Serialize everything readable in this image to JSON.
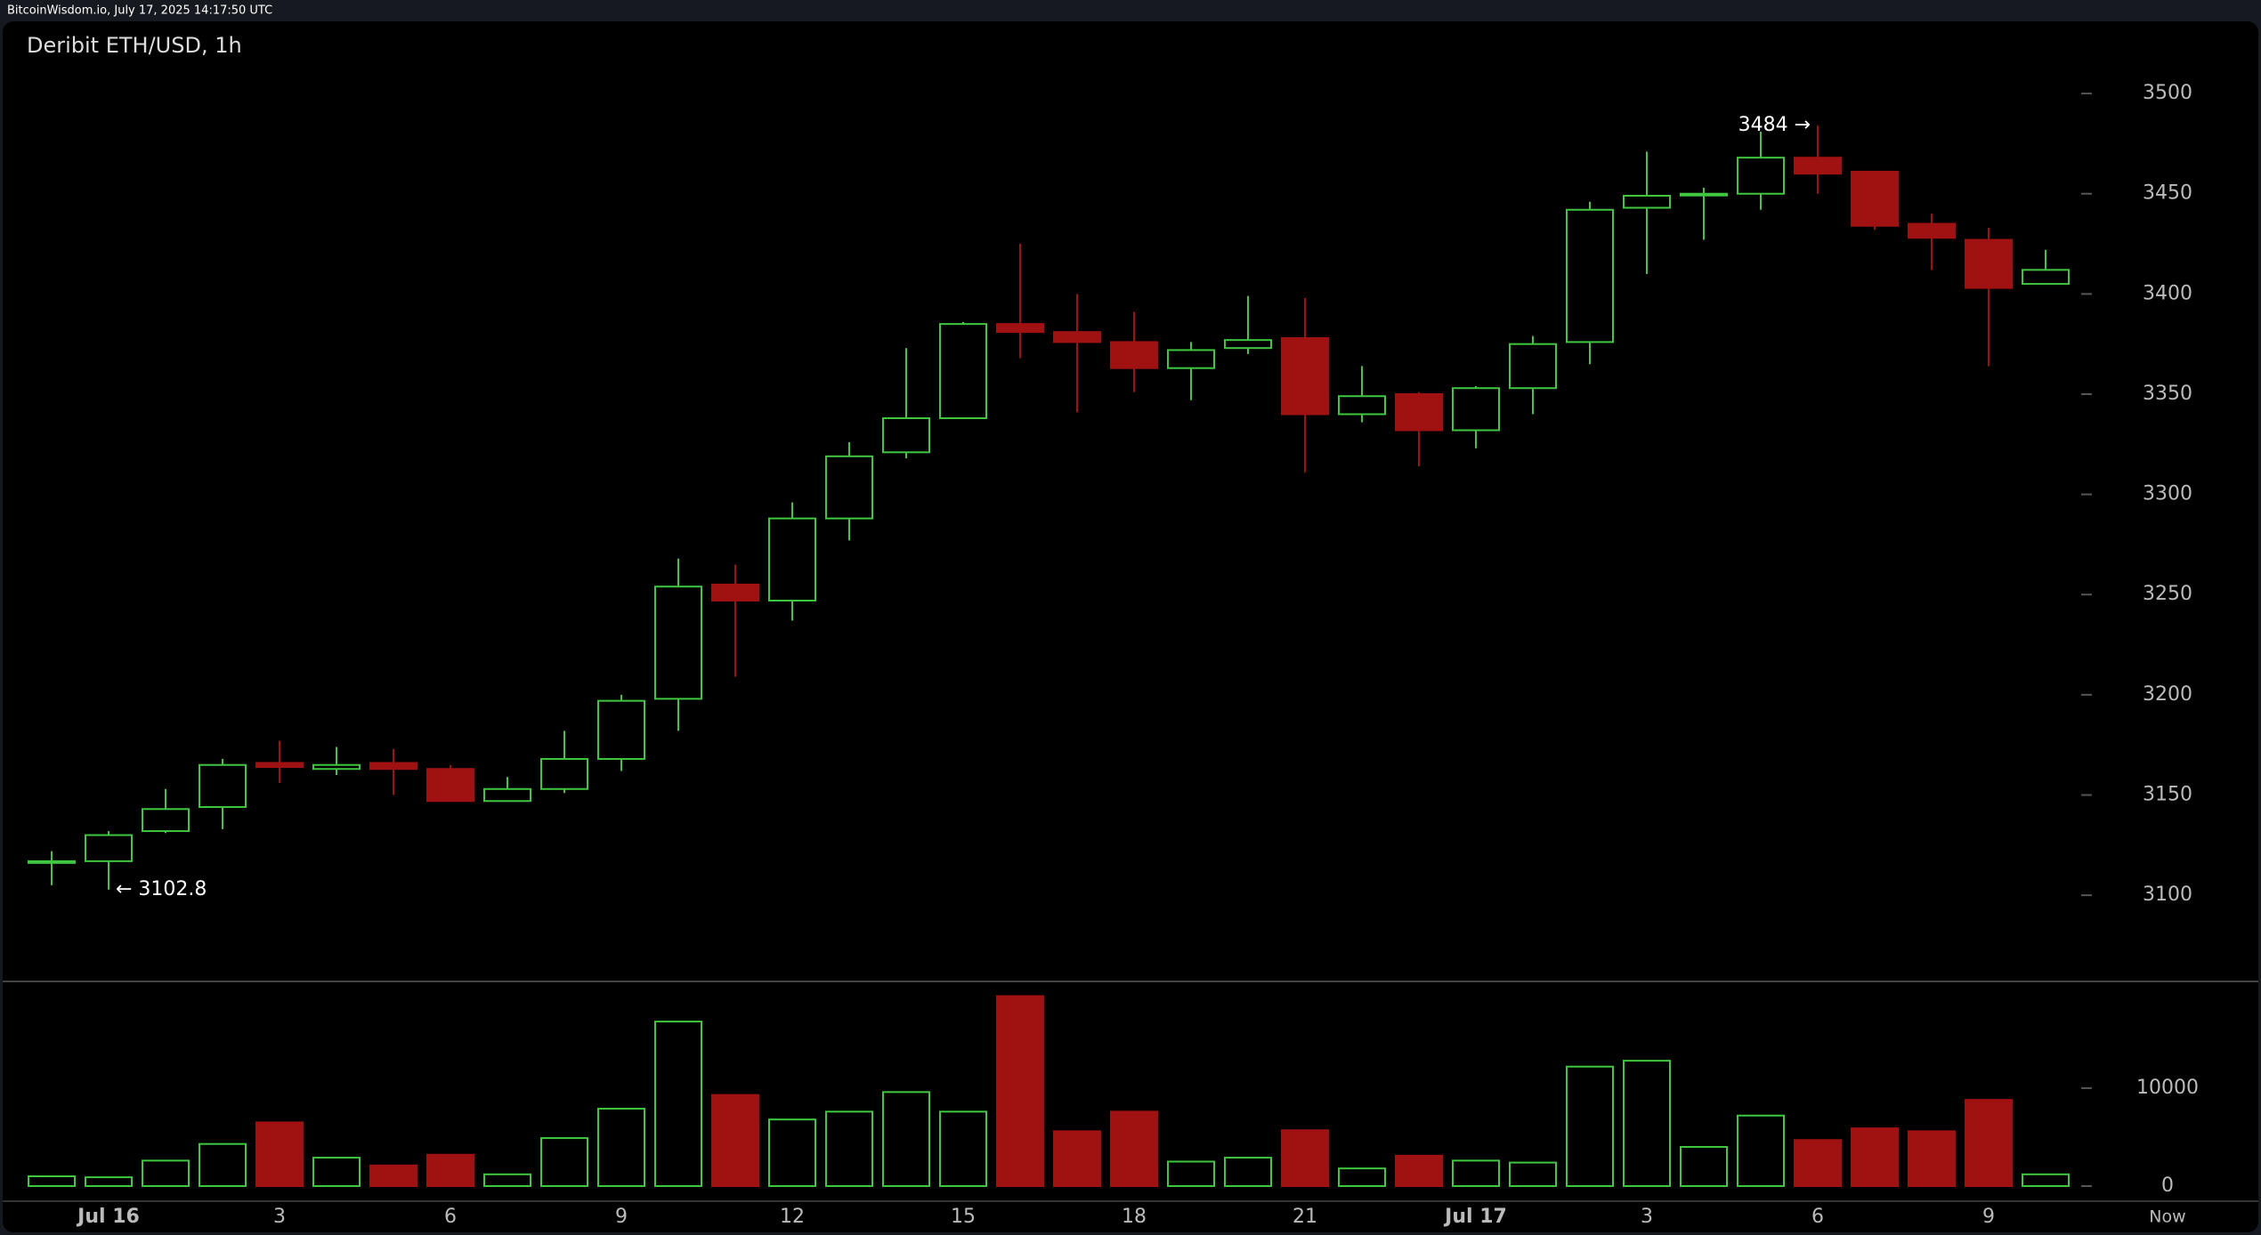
{
  "header": "BitcoinWisdom.io, July 17, 2025 14:17:50 UTC",
  "chart_data": {
    "type": "candlestick",
    "title": "Deribit ETH/USD, 1h",
    "categories": [
      null,
      "Jul 16",
      null,
      null,
      "3",
      null,
      null,
      "6",
      null,
      null,
      "9",
      null,
      null,
      "12",
      null,
      null,
      "15",
      null,
      null,
      "18",
      null,
      null,
      "21",
      null,
      null,
      "Jul 17",
      null,
      null,
      "3",
      null,
      null,
      "6",
      null,
      null,
      "9",
      null
    ],
    "now_label": "Now",
    "open": [
      3117,
      3117,
      3132,
      3144,
      3166,
      3163,
      3166,
      3163,
      3147,
      3153,
      3168,
      3198,
      3255,
      3247,
      3288,
      3321,
      3338,
      3385,
      3381,
      3376,
      3363,
      3373,
      3378,
      3340,
      3350,
      3332,
      3353,
      3376,
      3443,
      3450,
      3450,
      3468,
      3461,
      3435,
      3427,
      3405
    ],
    "high": [
      3122,
      3132,
      3153,
      3168,
      3177,
      3174,
      3173,
      3165,
      3159,
      3182,
      3200,
      3268,
      3265,
      3296,
      3326,
      3373,
      3386,
      3425,
      3400,
      3391,
      3376,
      3399,
      3398,
      3364,
      3351,
      3354,
      3379,
      3446,
      3471,
      3453,
      3481,
      3484,
      3461,
      3440,
      3433,
      3422
    ],
    "low": [
      3105,
      3102.8,
      3131,
      3133,
      3156,
      3160,
      3150,
      3147,
      3147,
      3151,
      3162,
      3182,
      3209,
      3237,
      3277,
      3318,
      3338,
      3368,
      3341,
      3351,
      3347,
      3370,
      3311,
      3336,
      3314,
      3323,
      3340,
      3365,
      3410,
      3427,
      3442,
      3450,
      3432,
      3412,
      3364,
      3405
    ],
    "close": [
      3117,
      3130,
      3143,
      3165,
      3164,
      3165,
      3163,
      3147,
      3153,
      3168,
      3197,
      3254,
      3247,
      3288,
      3319,
      3338,
      3385,
      3381,
      3376,
      3363,
      3372,
      3377,
      3340,
      3349,
      3332,
      3353,
      3375,
      3442,
      3449,
      3450,
      3468,
      3460,
      3434,
      3428,
      3403,
      3412
    ],
    "volume": [
      1000,
      900,
      2600,
      4300,
      6500,
      2900,
      2100,
      3200,
      1200,
      4900,
      7900,
      16800,
      9300,
      6800,
      7600,
      9600,
      7600,
      19400,
      5600,
      7600,
      2500,
      2900,
      5700,
      1800,
      3100,
      2600,
      2400,
      12200,
      12800,
      4000,
      7200,
      4700,
      5900,
      5600,
      8800,
      1200
    ],
    "high_label": "3484 →",
    "low_label": "← 3102.8",
    "ylim": [
      3057,
      3536
    ],
    "yticks": [
      3100,
      3150,
      3200,
      3250,
      3300,
      3350,
      3400,
      3450,
      3500
    ],
    "volume_ylim": [
      0,
      20900
    ],
    "volume_yticks": [
      0,
      10000
    ],
    "up_color": "#3fc73f",
    "down_color": "#a01212"
  }
}
